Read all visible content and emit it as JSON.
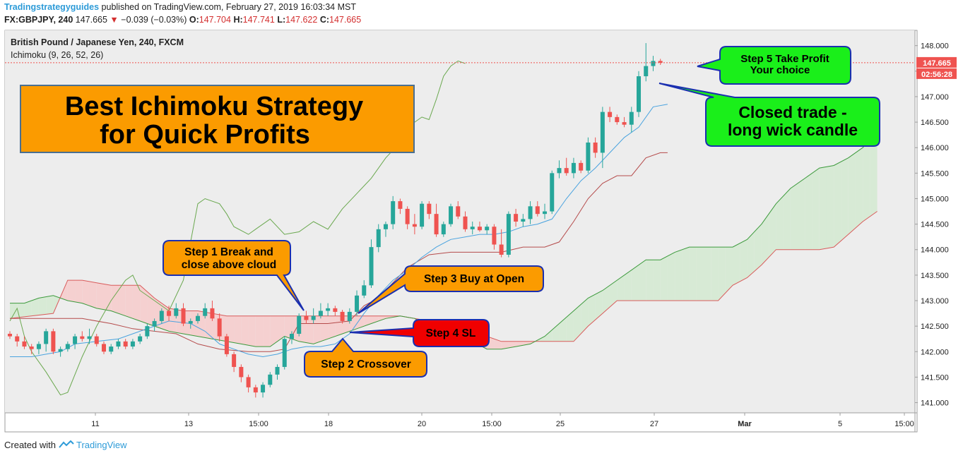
{
  "header": {
    "publisher": "Tradingstrategyguides",
    "published_text": "published on TradingView.com, February 27, 2019 16:03:34 MST",
    "symbol": "FX:GBPJPY, 240",
    "last": "147.665",
    "change_arrow": "▼",
    "change": "−0.039 (−0.03%)",
    "open_label": "O:",
    "open": "147.704",
    "high_label": "H:",
    "high": "147.741",
    "low_label": "L:",
    "low": "147.622",
    "close_label": "C:",
    "close": "147.665"
  },
  "legend": {
    "instrument": "British Pound / Japanese Yen, 240, FXCM",
    "indicator": "Ichimoku (9, 26, 52, 26)"
  },
  "price_badge": "147.665",
  "countdown_badge": "02:56:28",
  "footer": {
    "created_with": "Created with",
    "brand": "TradingView"
  },
  "callouts": {
    "title_line1": "Best Ichimoku Strategy",
    "title_line2": "for Quick Profits",
    "step1_line1": "Step 1 Break and",
    "step1_line2": "close above cloud",
    "step2": "Step 2 Crossover",
    "step3": "Step 3 Buy at Open",
    "step4": "Step 4 SL",
    "step5_line1": "Step 5 Take Profit",
    "step5_line2": "Your choice",
    "closed_line1": "Closed trade -",
    "closed_line2": "long wick candle"
  },
  "colors": {
    "bull": "#26a69a",
    "bear": "#ef5350",
    "tenkan": "#4aa3df",
    "kijun": "#b54b4b",
    "chikou": "#6aa84f",
    "span_a": "#3c9a3c",
    "span_b": "#d95b5b",
    "cloud_bull": "#d7ead5",
    "cloud_bear": "#f5d0d0",
    "callout_orange": "#fb9b00",
    "callout_green": "#1aef1a",
    "callout_red": "#f00000"
  },
  "chart_data": {
    "type": "candlestick",
    "ylim": [
      140.8,
      148.3
    ],
    "y_ticks": [
      "141.000",
      "141.500",
      "142.000",
      "142.500",
      "143.000",
      "143.500",
      "144.000",
      "144.500",
      "145.000",
      "145.500",
      "146.000",
      "146.500",
      "147.000",
      "147.500",
      "148.000"
    ],
    "x_ticks": [
      "11",
      "13",
      "15:00",
      "18",
      "20",
      "15:00",
      "25",
      "27",
      "Mar",
      "5",
      "15:00"
    ],
    "candles": [
      [
        142.35,
        142.4,
        142.25,
        142.3
      ],
      [
        142.3,
        142.35,
        142.1,
        142.2
      ],
      [
        142.2,
        142.3,
        142.05,
        142.1
      ],
      [
        142.1,
        142.15,
        141.95,
        142.05
      ],
      [
        142.05,
        142.2,
        141.95,
        142.15
      ],
      [
        142.15,
        142.45,
        142.0,
        142.4
      ],
      [
        142.4,
        142.45,
        141.95,
        142.0
      ],
      [
        142.0,
        142.1,
        141.9,
        142.05
      ],
      [
        142.05,
        142.2,
        142.0,
        142.15
      ],
      [
        142.15,
        142.35,
        142.05,
        142.3
      ],
      [
        142.3,
        142.4,
        142.2,
        142.25
      ],
      [
        142.25,
        142.45,
        142.15,
        142.3
      ],
      [
        142.3,
        142.35,
        142.1,
        142.15
      ],
      [
        142.15,
        142.2,
        141.95,
        142.0
      ],
      [
        142.0,
        142.15,
        141.95,
        142.1
      ],
      [
        142.1,
        142.25,
        142.05,
        142.2
      ],
      [
        142.2,
        142.25,
        142.05,
        142.1
      ],
      [
        142.1,
        142.25,
        142.05,
        142.2
      ],
      [
        142.2,
        142.35,
        142.15,
        142.3
      ],
      [
        142.3,
        142.55,
        142.25,
        142.5
      ],
      [
        142.5,
        142.65,
        142.4,
        142.6
      ],
      [
        142.6,
        142.85,
        142.55,
        142.8
      ],
      [
        142.8,
        142.9,
        142.6,
        142.7
      ],
      [
        142.7,
        142.95,
        142.65,
        142.85
      ],
      [
        142.85,
        142.95,
        142.5,
        142.55
      ],
      [
        142.55,
        142.65,
        142.45,
        142.6
      ],
      [
        142.6,
        142.75,
        142.55,
        142.7
      ],
      [
        142.7,
        142.95,
        142.65,
        142.85
      ],
      [
        142.85,
        143.0,
        142.6,
        142.65
      ],
      [
        142.65,
        142.75,
        142.2,
        142.3
      ],
      [
        142.3,
        142.35,
        141.9,
        141.95
      ],
      [
        141.95,
        142.0,
        141.6,
        141.7
      ],
      [
        141.7,
        141.75,
        141.4,
        141.5
      ],
      [
        141.5,
        141.55,
        141.2,
        141.3
      ],
      [
        141.3,
        141.35,
        141.1,
        141.2
      ],
      [
        141.2,
        141.4,
        141.1,
        141.35
      ],
      [
        141.35,
        141.6,
        141.3,
        141.55
      ],
      [
        141.55,
        141.75,
        141.45,
        141.7
      ],
      [
        141.7,
        142.3,
        141.65,
        142.25
      ],
      [
        142.25,
        142.4,
        142.15,
        142.35
      ],
      [
        142.35,
        142.75,
        142.3,
        142.7
      ],
      [
        142.7,
        142.8,
        142.55,
        142.62
      ],
      [
        142.62,
        142.85,
        142.55,
        142.7
      ],
      [
        142.7,
        142.95,
        142.65,
        142.8
      ],
      [
        142.8,
        142.95,
        142.7,
        142.85
      ],
      [
        142.85,
        142.9,
        142.7,
        142.78
      ],
      [
        142.78,
        142.82,
        142.55,
        142.6
      ],
      [
        142.6,
        142.85,
        142.55,
        142.78
      ],
      [
        142.78,
        143.2,
        142.7,
        143.1
      ],
      [
        143.1,
        143.4,
        143.05,
        143.3
      ],
      [
        143.3,
        144.2,
        143.25,
        144.05
      ],
      [
        144.05,
        144.5,
        143.95,
        144.4
      ],
      [
        144.4,
        144.55,
        144.25,
        144.5
      ],
      [
        144.5,
        145.05,
        144.4,
        144.95
      ],
      [
        144.95,
        145.0,
        144.7,
        144.8
      ],
      [
        144.8,
        144.85,
        144.4,
        144.5
      ],
      [
        144.5,
        144.7,
        144.3,
        144.45
      ],
      [
        144.45,
        144.95,
        144.4,
        144.9
      ],
      [
        144.9,
        144.95,
        144.6,
        144.7
      ],
      [
        144.7,
        144.9,
        144.25,
        144.3
      ],
      [
        144.3,
        144.55,
        144.25,
        144.5
      ],
      [
        144.5,
        144.9,
        144.45,
        144.85
      ],
      [
        144.85,
        144.95,
        144.6,
        144.65
      ],
      [
        144.65,
        144.75,
        144.35,
        144.4
      ],
      [
        144.4,
        144.55,
        144.3,
        144.45
      ],
      [
        144.45,
        144.55,
        144.35,
        144.38
      ],
      [
        144.38,
        144.5,
        144.3,
        144.45
      ],
      [
        144.45,
        144.5,
        144.0,
        144.1
      ],
      [
        144.1,
        144.4,
        143.85,
        143.9
      ],
      [
        143.9,
        144.75,
        143.85,
        144.7
      ],
      [
        144.7,
        144.8,
        144.45,
        144.55
      ],
      [
        144.55,
        144.7,
        144.45,
        144.6
      ],
      [
        144.6,
        144.95,
        144.5,
        144.85
      ],
      [
        144.85,
        144.95,
        144.65,
        144.7
      ],
      [
        144.7,
        144.9,
        144.6,
        144.75
      ],
      [
        144.75,
        145.55,
        144.7,
        145.5
      ],
      [
        145.5,
        145.75,
        145.4,
        145.6
      ],
      [
        145.6,
        145.8,
        145.45,
        145.5
      ],
      [
        145.5,
        145.8,
        145.4,
        145.7
      ],
      [
        145.7,
        145.75,
        145.5,
        145.55
      ],
      [
        145.55,
        146.2,
        145.5,
        146.1
      ],
      [
        146.1,
        146.2,
        145.8,
        145.9
      ],
      [
        145.9,
        146.8,
        145.6,
        146.7
      ],
      [
        146.7,
        146.8,
        146.5,
        146.6
      ],
      [
        146.6,
        146.65,
        146.45,
        146.5
      ],
      [
        146.5,
        146.6,
        146.4,
        146.45
      ],
      [
        146.45,
        146.8,
        146.3,
        146.7
      ],
      [
        146.7,
        147.5,
        146.6,
        147.4
      ],
      [
        147.4,
        148.05,
        147.3,
        147.6
      ],
      [
        147.6,
        147.8,
        147.5,
        147.7
      ],
      [
        147.7,
        147.741,
        147.622,
        147.665
      ]
    ],
    "tenkan": [
      [
        0,
        141.9
      ],
      [
        3,
        141.9
      ],
      [
        5,
        141.95
      ],
      [
        7,
        142.0
      ],
      [
        9,
        142.15
      ],
      [
        12,
        142.2
      ],
      [
        15,
        142.25
      ],
      [
        18,
        142.4
      ],
      [
        20,
        142.5
      ],
      [
        22,
        142.6
      ],
      [
        25,
        142.55
      ],
      [
        27,
        142.4
      ],
      [
        29,
        142.15
      ],
      [
        31,
        142.05
      ],
      [
        33,
        141.95
      ],
      [
        35,
        141.9
      ],
      [
        37,
        141.95
      ],
      [
        39,
        142.05
      ],
      [
        41,
        142.1
      ],
      [
        43,
        142.1
      ],
      [
        45,
        142.15
      ],
      [
        47,
        142.35
      ],
      [
        49,
        142.75
      ],
      [
        51,
        143.1
      ],
      [
        53,
        143.4
      ],
      [
        55,
        143.6
      ],
      [
        57,
        143.85
      ],
      [
        59,
        144.05
      ],
      [
        61,
        144.2
      ],
      [
        63,
        144.25
      ],
      [
        65,
        144.3
      ],
      [
        67,
        144.3
      ],
      [
        69,
        144.35
      ],
      [
        71,
        144.45
      ],
      [
        73,
        144.5
      ],
      [
        75,
        144.6
      ],
      [
        77,
        145.0
      ],
      [
        79,
        145.35
      ],
      [
        81,
        145.6
      ],
      [
        83,
        145.9
      ],
      [
        85,
        146.2
      ],
      [
        87,
        146.4
      ],
      [
        89,
        146.8
      ],
      [
        91,
        146.85
      ]
    ],
    "kijun": [
      [
        0,
        142.65
      ],
      [
        5,
        142.65
      ],
      [
        10,
        142.65
      ],
      [
        14,
        142.55
      ],
      [
        17,
        142.45
      ],
      [
        20,
        142.4
      ],
      [
        23,
        142.35
      ],
      [
        26,
        142.15
      ],
      [
        29,
        142.05
      ],
      [
        33,
        142.0
      ],
      [
        36,
        142.0
      ],
      [
        38,
        142.05
      ],
      [
        40,
        142.55
      ],
      [
        44,
        142.55
      ],
      [
        47,
        142.6
      ],
      [
        49,
        142.9
      ],
      [
        51,
        143.05
      ],
      [
        55,
        143.65
      ],
      [
        58,
        143.9
      ],
      [
        61,
        143.95
      ],
      [
        65,
        143.95
      ],
      [
        68,
        143.95
      ],
      [
        71,
        144.05
      ],
      [
        74,
        144.05
      ],
      [
        76,
        144.15
      ],
      [
        78,
        144.55
      ],
      [
        80,
        145.0
      ],
      [
        82,
        145.3
      ],
      [
        84,
        145.45
      ],
      [
        86,
        145.45
      ],
      [
        88,
        145.8
      ],
      [
        90,
        145.9
      ],
      [
        91,
        145.9
      ]
    ],
    "chikou": [
      [
        0,
        142.6
      ],
      [
        1,
        142.85
      ],
      [
        2,
        142.3
      ],
      [
        3,
        142.0
      ],
      [
        5,
        141.6
      ],
      [
        7,
        141.15
      ],
      [
        8,
        141.2
      ],
      [
        10,
        141.9
      ],
      [
        12,
        142.5
      ],
      [
        14,
        143.0
      ],
      [
        16,
        143.4
      ],
      [
        17,
        143.5
      ],
      [
        18,
        143.2
      ],
      [
        20,
        143.0
      ],
      [
        22,
        142.8
      ],
      [
        24,
        143.4
      ],
      [
        26,
        144.9
      ],
      [
        27,
        145.0
      ],
      [
        29,
        144.9
      ],
      [
        30,
        144.7
      ],
      [
        31,
        144.45
      ],
      [
        33,
        144.3
      ],
      [
        34,
        144.4
      ],
      [
        36,
        144.6
      ],
      [
        38,
        144.3
      ],
      [
        40,
        144.35
      ],
      [
        42,
        144.55
      ],
      [
        44,
        144.4
      ],
      [
        46,
        144.8
      ],
      [
        48,
        145.1
      ],
      [
        50,
        145.4
      ],
      [
        52,
        145.8
      ],
      [
        54,
        146.1
      ],
      [
        55,
        146.4
      ],
      [
        56,
        146.5
      ],
      [
        57,
        146.6
      ],
      [
        58,
        146.55
      ],
      [
        59,
        146.95
      ],
      [
        60,
        147.4
      ],
      [
        61,
        147.6
      ],
      [
        62,
        147.7
      ],
      [
        63,
        147.65
      ]
    ],
    "span_a": [
      [
        0,
        142.95
      ],
      [
        2,
        142.95
      ],
      [
        4,
        143.05
      ],
      [
        6,
        143.1
      ],
      [
        8,
        143.0
      ],
      [
        10,
        142.95
      ],
      [
        12,
        142.85
      ],
      [
        14,
        142.8
      ],
      [
        16,
        142.7
      ],
      [
        18,
        142.6
      ],
      [
        20,
        142.5
      ],
      [
        22,
        142.4
      ],
      [
        24,
        142.35
      ],
      [
        26,
        142.3
      ],
      [
        28,
        142.25
      ],
      [
        30,
        142.2
      ],
      [
        32,
        142.15
      ],
      [
        34,
        142.1
      ],
      [
        36,
        142.1
      ],
      [
        38,
        142.3
      ],
      [
        40,
        142.2
      ],
      [
        42,
        142.15
      ],
      [
        44,
        142.25
      ],
      [
        46,
        142.35
      ],
      [
        48,
        142.45
      ],
      [
        50,
        142.55
      ],
      [
        52,
        142.65
      ],
      [
        54,
        142.7
      ],
      [
        56,
        142.65
      ],
      [
        58,
        142.5
      ],
      [
        60,
        142.4
      ],
      [
        62,
        142.3
      ],
      [
        64,
        142.2
      ],
      [
        66,
        142.05
      ],
      [
        68,
        142.05
      ],
      [
        70,
        142.1
      ],
      [
        72,
        142.15
      ],
      [
        74,
        142.3
      ],
      [
        76,
        142.55
      ],
      [
        78,
        142.8
      ],
      [
        80,
        143.05
      ],
      [
        82,
        143.2
      ],
      [
        84,
        143.4
      ],
      [
        86,
        143.6
      ],
      [
        88,
        143.8
      ],
      [
        90,
        143.8
      ],
      [
        92,
        143.95
      ],
      [
        94,
        144.05
      ],
      [
        96,
        144.05
      ],
      [
        98,
        144.05
      ],
      [
        100,
        144.05
      ],
      [
        102,
        144.2
      ],
      [
        104,
        144.5
      ],
      [
        106,
        144.9
      ],
      [
        108,
        145.2
      ],
      [
        110,
        145.4
      ],
      [
        112,
        145.6
      ],
      [
        114,
        145.65
      ],
      [
        116,
        145.8
      ],
      [
        118,
        146.0
      ],
      [
        120,
        146.3
      ]
    ],
    "span_b": [
      [
        0,
        142.65
      ],
      [
        6,
        142.75
      ],
      [
        8,
        143.4
      ],
      [
        10,
        143.4
      ],
      [
        12,
        143.35
      ],
      [
        14,
        143.3
      ],
      [
        16,
        143.3
      ],
      [
        18,
        143.3
      ],
      [
        20,
        143.05
      ],
      [
        22,
        142.85
      ],
      [
        24,
        142.8
      ],
      [
        26,
        142.8
      ],
      [
        28,
        142.75
      ],
      [
        30,
        142.7
      ],
      [
        32,
        142.7
      ],
      [
        34,
        142.7
      ],
      [
        36,
        142.7
      ],
      [
        38,
        142.7
      ],
      [
        40,
        142.7
      ],
      [
        42,
        142.7
      ],
      [
        44,
        142.7
      ],
      [
        46,
        142.7
      ],
      [
        48,
        142.7
      ],
      [
        50,
        142.7
      ],
      [
        52,
        142.7
      ],
      [
        54,
        142.7
      ],
      [
        56,
        142.65
      ],
      [
        58,
        142.6
      ],
      [
        60,
        142.55
      ],
      [
        62,
        142.45
      ],
      [
        64,
        142.4
      ],
      [
        66,
        142.3
      ],
      [
        68,
        142.2
      ],
      [
        70,
        142.2
      ],
      [
        72,
        142.2
      ],
      [
        74,
        142.2
      ],
      [
        76,
        142.2
      ],
      [
        78,
        142.2
      ],
      [
        80,
        142.5
      ],
      [
        82,
        142.75
      ],
      [
        84,
        143.0
      ],
      [
        86,
        143.0
      ],
      [
        88,
        143.0
      ],
      [
        90,
        143.0
      ],
      [
        92,
        143.0
      ],
      [
        94,
        143.0
      ],
      [
        96,
        143.0
      ],
      [
        98,
        143.0
      ],
      [
        100,
        143.3
      ],
      [
        102,
        143.45
      ],
      [
        104,
        143.7
      ],
      [
        106,
        144.0
      ],
      [
        108,
        144.0
      ],
      [
        110,
        144.0
      ],
      [
        112,
        144.0
      ],
      [
        114,
        144.05
      ],
      [
        116,
        144.3
      ],
      [
        118,
        144.55
      ],
      [
        120,
        144.75
      ]
    ]
  }
}
